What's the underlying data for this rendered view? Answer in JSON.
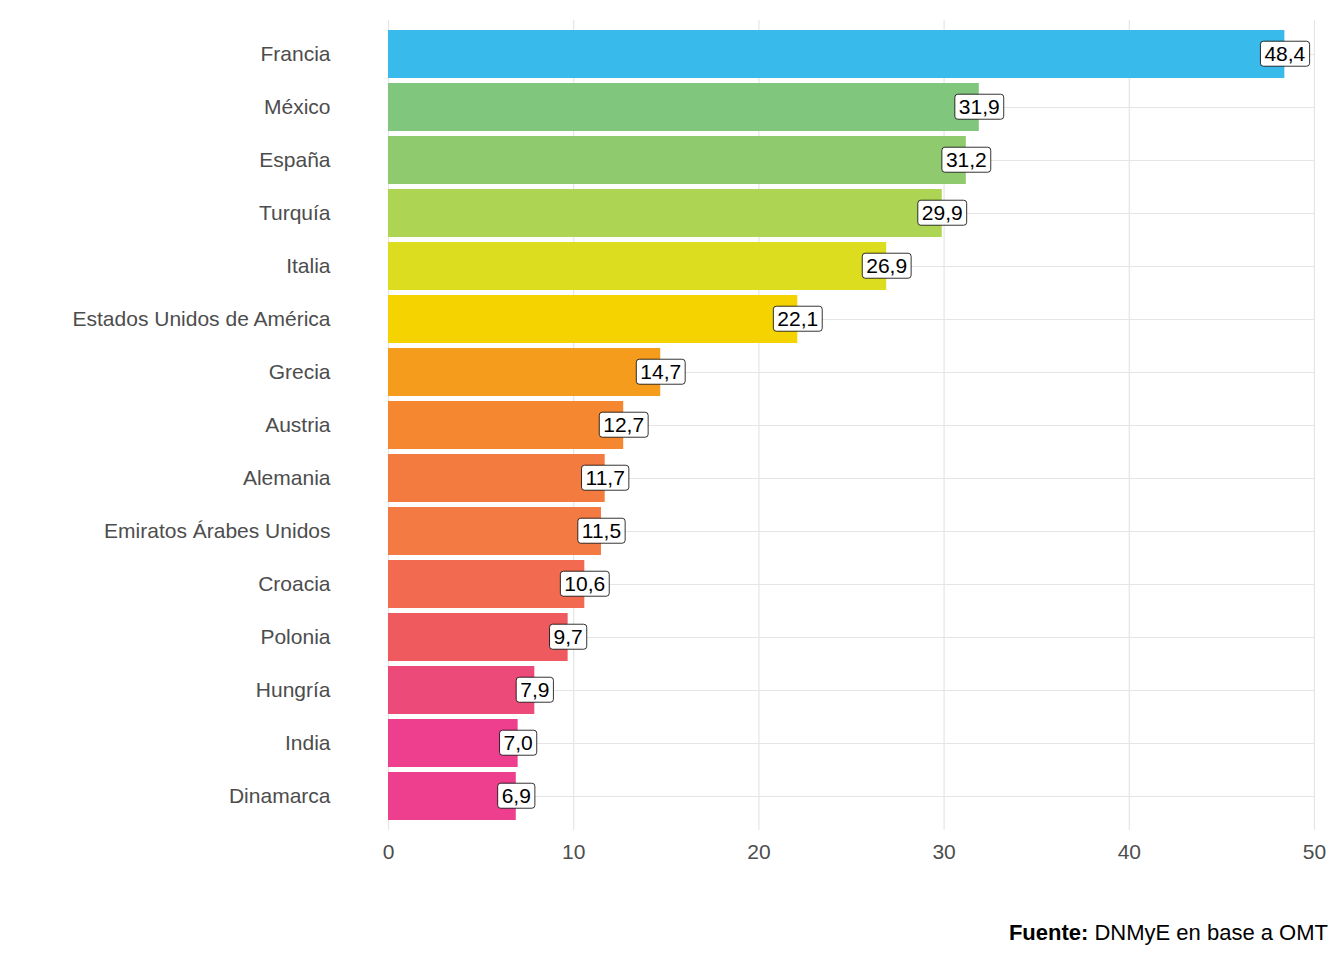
{
  "chart_data": {
    "type": "bar",
    "orientation": "horizontal",
    "categories": [
      "Francia",
      "México",
      "España",
      "Turquía",
      "Italia",
      "Estados Unidos de América",
      "Grecia",
      "Austria",
      "Alemania",
      "Emiratos Árabes Unidos",
      "Croacia",
      "Polonia",
      "Hungría",
      "India",
      "Dinamarca"
    ],
    "values": [
      48.4,
      31.9,
      31.2,
      29.9,
      26.9,
      22.1,
      14.7,
      12.7,
      11.7,
      11.5,
      10.6,
      9.7,
      7.9,
      7.0,
      6.9
    ],
    "value_labels": [
      "48,4",
      "31,9",
      "31,2",
      "29,9",
      "26,9",
      "22,1",
      "14,7",
      "12,7",
      "11,7",
      "11,5",
      "10,6",
      "9,7",
      "7,9",
      "7,0",
      "6,9"
    ],
    "colors": [
      "#38BBEA",
      "#80C67C",
      "#8FCB6E",
      "#ADD453",
      "#DCDD1E",
      "#F5D300",
      "#F59C1C",
      "#F4872F",
      "#F47B3F",
      "#F47A44",
      "#F26B51",
      "#EF5A5E",
      "#EC4B7A",
      "#EE3E8E",
      "#EE3E8E"
    ],
    "xlim": [
      0,
      50
    ],
    "xticks": [
      0,
      10,
      20,
      30,
      40,
      50
    ],
    "grid": true,
    "data_labels": true,
    "caption": "Fuente: DNMyE en base a OMT"
  }
}
